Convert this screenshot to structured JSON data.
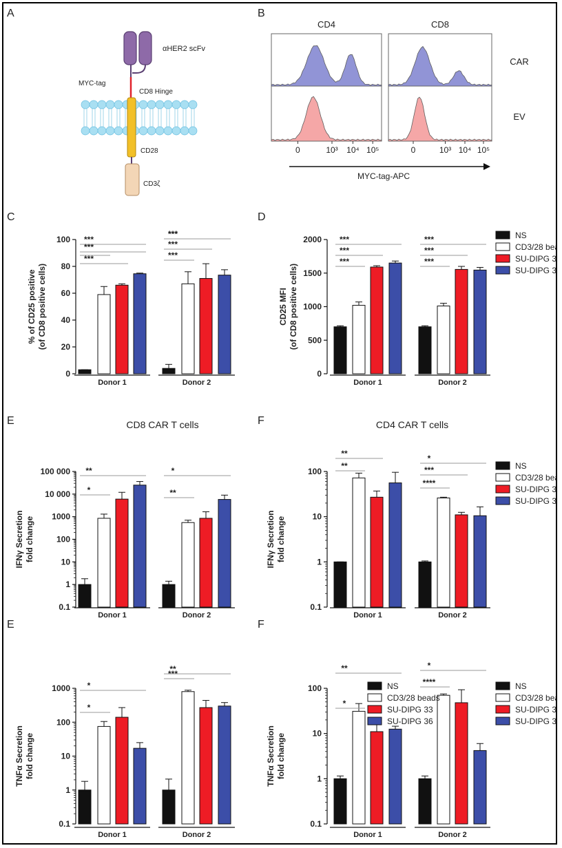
{
  "panel_letters": [
    "A",
    "B",
    "C",
    "D",
    "E",
    "F",
    "E",
    "F"
  ],
  "colors": {
    "NS": "#111111",
    "CD3/28 beads": "#ffffff",
    "SU-DIPG 33": "#ee1c25",
    "SU-DIPG 36": "#3c4ea8",
    "car_hist": "#8c8fd4",
    "ev_hist": "#f5a3a3",
    "membrane": "#a9dff2",
    "scfv": "#8e6aa8",
    "cd28": "#f2c028",
    "cd3z": "#f3d6b6"
  },
  "schematic": {
    "labels": {
      "scfv": "αHER2 scFv",
      "myc": "MYC-tag",
      "hinge": "CD8 Hinge",
      "cd28": "CD28",
      "cd3z": "CD3ζ"
    }
  },
  "flow": {
    "columns": [
      "CD4",
      "CD8"
    ],
    "rows": [
      "CAR",
      "EV"
    ],
    "ticks": [
      "0",
      "10³",
      "10⁴",
      "10⁵"
    ],
    "xlabel": "MYC-tag-APC"
  },
  "legend": [
    "NS",
    "CD3/28 beads",
    "SU-DIPG 33",
    "SU-DIPG 36"
  ],
  "chart_data": [
    {
      "panel": "C",
      "type": "bar",
      "ylabel": [
        "% of CD25 positive",
        "(of CD8 positive cells)"
      ],
      "ylim": [
        0,
        100
      ],
      "yticks": [
        "0",
        "20",
        "40",
        "60",
        "80",
        "100"
      ],
      "scale": "linear",
      "categories": [
        "Donor 1",
        "Donor 2"
      ],
      "series": [
        {
          "name": "NS",
          "values": [
            3,
            4
          ],
          "err": [
            0,
            3
          ]
        },
        {
          "name": "CD3/28 beads",
          "values": [
            59,
            67
          ],
          "err": [
            6,
            9
          ]
        },
        {
          "name": "SU-DIPG 33",
          "values": [
            66,
            71
          ],
          "err": [
            1,
            11
          ]
        },
        {
          "name": "SU-DIPG 36",
          "values": [
            74.5,
            73.5
          ],
          "err": [
            0.5,
            4
          ]
        }
      ],
      "sig": [
        {
          "group": 0,
          "from": 0,
          "to": 1,
          "label": ""
        },
        {
          "group": 0,
          "from": 0,
          "to": 2,
          "label": "***"
        },
        {
          "group": 0,
          "from": 0,
          "to": 3,
          "label": "***"
        },
        {
          "group": 0,
          "from": 0,
          "to": 3,
          "label": "***"
        },
        {
          "group": 1,
          "from": 0,
          "to": 1,
          "label": "***"
        },
        {
          "group": 1,
          "from": 0,
          "to": 2,
          "label": "***"
        },
        {
          "group": 1,
          "from": 0,
          "to": 3,
          "label": "***"
        },
        {
          "group": 1,
          "from": 0,
          "to": 3,
          "label": "***"
        }
      ]
    },
    {
      "panel": "D",
      "type": "bar",
      "ylabel": [
        "CD25 MFI",
        "(of CD8 positive cells)"
      ],
      "ylim": [
        0,
        2000
      ],
      "yticks": [
        "0",
        "500",
        "1000",
        "1500",
        "2000"
      ],
      "scale": "linear",
      "categories": [
        "Donor 1",
        "Donor 2"
      ],
      "series": [
        {
          "name": "NS",
          "values": [
            700,
            700
          ],
          "err": [
            15,
            15
          ]
        },
        {
          "name": "CD3/28 beads",
          "values": [
            1020,
            1010
          ],
          "err": [
            50,
            40
          ]
        },
        {
          "name": "SU-DIPG 33",
          "values": [
            1590,
            1555
          ],
          "err": [
            20,
            45
          ]
        },
        {
          "name": "SU-DIPG 36",
          "values": [
            1650,
            1545
          ],
          "err": [
            30,
            40
          ]
        }
      ],
      "sig": [
        {
          "group": 0,
          "from": 0,
          "to": 1,
          "label": "***"
        },
        {
          "group": 0,
          "from": 0,
          "to": 2,
          "label": "***"
        },
        {
          "group": 0,
          "from": 0,
          "to": 3,
          "label": "***"
        },
        {
          "group": 1,
          "from": 0,
          "to": 1,
          "label": "***"
        },
        {
          "group": 1,
          "from": 0,
          "to": 2,
          "label": "***"
        },
        {
          "group": 1,
          "from": 0,
          "to": 3,
          "label": "***"
        }
      ]
    },
    {
      "panel": "E",
      "title": "CD8 CAR T cells",
      "type": "bar",
      "ylabel": [
        "IFNγ Secretion",
        "fold change"
      ],
      "ylim": [
        0.1,
        100000
      ],
      "yticks": [
        "0.1",
        "1",
        "10",
        "100",
        "1000",
        "10 000",
        "100 000"
      ],
      "scale": "log",
      "categories": [
        "Donor 1",
        "Donor 2"
      ],
      "series": [
        {
          "name": "NS",
          "values": [
            1,
            1
          ],
          "err": [
            0.8,
            0.4
          ]
        },
        {
          "name": "CD3/28 beads",
          "values": [
            850,
            550
          ],
          "err": [
            450,
            150
          ]
        },
        {
          "name": "SU-DIPG 33",
          "values": [
            6000,
            850
          ],
          "err": [
            6000,
            800
          ]
        },
        {
          "name": "SU-DIPG 36",
          "values": [
            25000,
            5800
          ],
          "err": [
            11000,
            3200
          ]
        }
      ],
      "sig": [
        {
          "group": 0,
          "from": 0,
          "to": 1,
          "label": "*"
        },
        {
          "group": 0,
          "from": 0,
          "to": 3,
          "label": "**"
        },
        {
          "group": 1,
          "from": 0,
          "to": 1,
          "label": "**"
        },
        {
          "group": 1,
          "from": 0,
          "to": 3,
          "label": "*"
        }
      ]
    },
    {
      "panel": "F",
      "title": "CD4 CAR T cells",
      "type": "bar",
      "ylabel": [
        "IFNγ Secretion",
        "fold change"
      ],
      "ylim": [
        0.1,
        100
      ],
      "yticks": [
        "0.1",
        "1",
        "10",
        "100"
      ],
      "scale": "log",
      "categories": [
        "Donor 1",
        "Donor 2"
      ],
      "series": [
        {
          "name": "NS",
          "values": [
            1,
            1
          ],
          "err": [
            0,
            0.05
          ]
        },
        {
          "name": "CD3/28 beads",
          "values": [
            72,
            26
          ],
          "err": [
            20,
            1
          ]
        },
        {
          "name": "SU-DIPG 33",
          "values": [
            27,
            11
          ],
          "err": [
            10,
            1.5
          ]
        },
        {
          "name": "SU-DIPG 36",
          "values": [
            56,
            10.5
          ],
          "err": [
            40,
            6
          ]
        }
      ],
      "sig": [
        {
          "group": 0,
          "from": 0,
          "to": 1,
          "label": "**"
        },
        {
          "group": 0,
          "from": 0,
          "to": 2,
          "label": "**"
        },
        {
          "group": 1,
          "from": 0,
          "to": 1,
          "label": "****"
        },
        {
          "group": 1,
          "from": 0,
          "to": 2,
          "label": "***"
        },
        {
          "group": 1,
          "from": 0,
          "to": 3,
          "label": "*"
        }
      ]
    },
    {
      "panel": "E",
      "type": "bar",
      "ylabel": [
        "TNFα Secretion",
        "fold change"
      ],
      "ylim": [
        0.1,
        1000
      ],
      "yticks": [
        "0.1",
        "1",
        "10",
        "100",
        "1000"
      ],
      "scale": "log",
      "categories": [
        "Donor 1",
        "Donor 2"
      ],
      "series": [
        {
          "name": "NS",
          "values": [
            1,
            1
          ],
          "err": [
            0.8,
            1.1
          ]
        },
        {
          "name": "CD3/28 beads",
          "values": [
            75,
            800
          ],
          "err": [
            30,
            80
          ]
        },
        {
          "name": "SU-DIPG 33",
          "values": [
            140,
            270
          ],
          "err": [
            130,
            170
          ]
        },
        {
          "name": "SU-DIPG 36",
          "values": [
            17,
            300
          ],
          "err": [
            8,
            80
          ]
        }
      ],
      "sig": [
        {
          "group": 0,
          "from": 0,
          "to": 1,
          "label": "*"
        },
        {
          "group": 0,
          "from": 0,
          "to": 3,
          "label": "*"
        },
        {
          "group": 1,
          "from": 0,
          "to": 1,
          "label": "***"
        },
        {
          "group": 1,
          "from": 0,
          "to": 3,
          "label": "**"
        }
      ]
    },
    {
      "panel": "F",
      "type": "bar",
      "ylabel": [
        "TNFα Secretion",
        "fold change"
      ],
      "ylim": [
        0.1,
        100
      ],
      "yticks": [
        "0.1",
        "1",
        "10",
        "100"
      ],
      "scale": "log",
      "categories": [
        "Donor 1",
        "Donor 2"
      ],
      "series": [
        {
          "name": "NS",
          "values": [
            1,
            1
          ],
          "err": [
            0.15,
            0.15
          ]
        },
        {
          "name": "CD3/28 beads",
          "values": [
            31,
            70
          ],
          "err": [
            15,
            5
          ]
        },
        {
          "name": "SU-DIPG 33",
          "values": [
            11,
            48
          ],
          "err": [
            7,
            45
          ]
        },
        {
          "name": "SU-DIPG 36",
          "values": [
            12.5,
            4.2
          ],
          "err": [
            2,
            1.8
          ]
        }
      ],
      "sig": [
        {
          "group": 0,
          "from": 0,
          "to": 1,
          "label": "*"
        },
        {
          "group": 0,
          "from": 0,
          "to": 3,
          "label": "**"
        },
        {
          "group": 1,
          "from": 0,
          "to": 1,
          "label": "****"
        },
        {
          "group": 1,
          "from": 0,
          "to": 3,
          "label": "*"
        }
      ]
    }
  ]
}
